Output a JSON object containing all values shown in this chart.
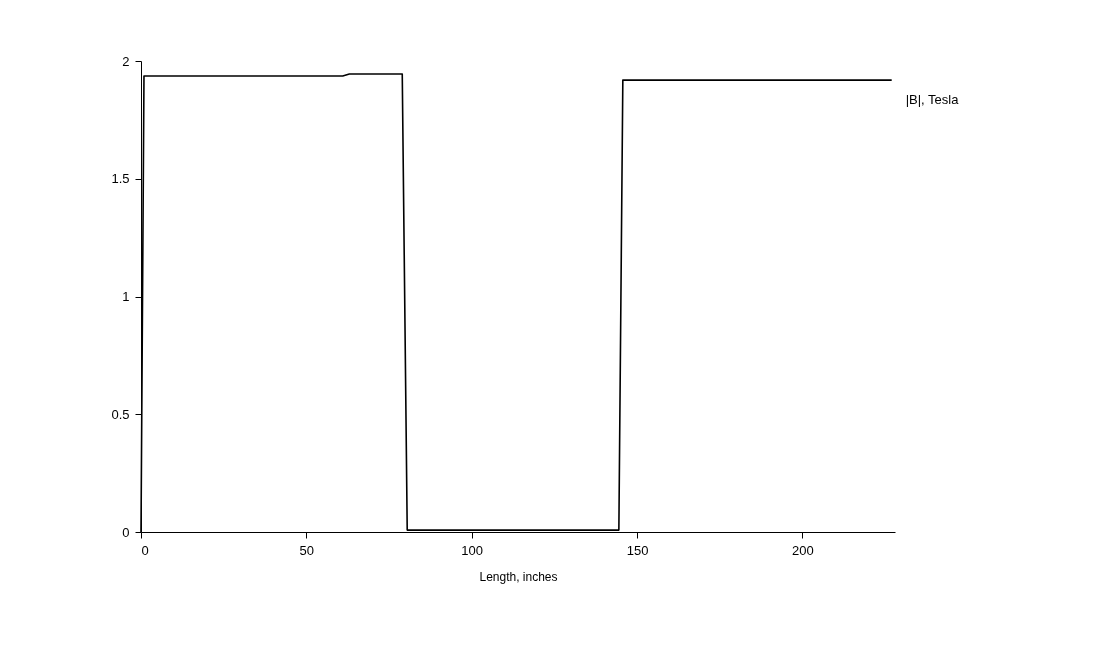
{
  "chart_data": {
    "type": "line",
    "xlabel": "Length, inches",
    "x": [
      0,
      0.9,
      61,
      63,
      79,
      80.5,
      144.5,
      145.7,
      227
    ],
    "series": [
      {
        "name": "|B|, Tesla",
        "color": "#000000",
        "values": [
          0,
          1.936,
          1.936,
          1.945,
          1.945,
          0.008,
          0.008,
          1.919,
          1.919
        ]
      }
    ],
    "xlim": [
      0,
      228
    ],
    "xticks": [
      0,
      50,
      100,
      150,
      200
    ],
    "ylim": [
      0,
      2
    ],
    "yticks": [
      0,
      0.5,
      1,
      1.5,
      2
    ],
    "grid": false,
    "legend": false,
    "marker": "none",
    "line_style": "solid"
  }
}
